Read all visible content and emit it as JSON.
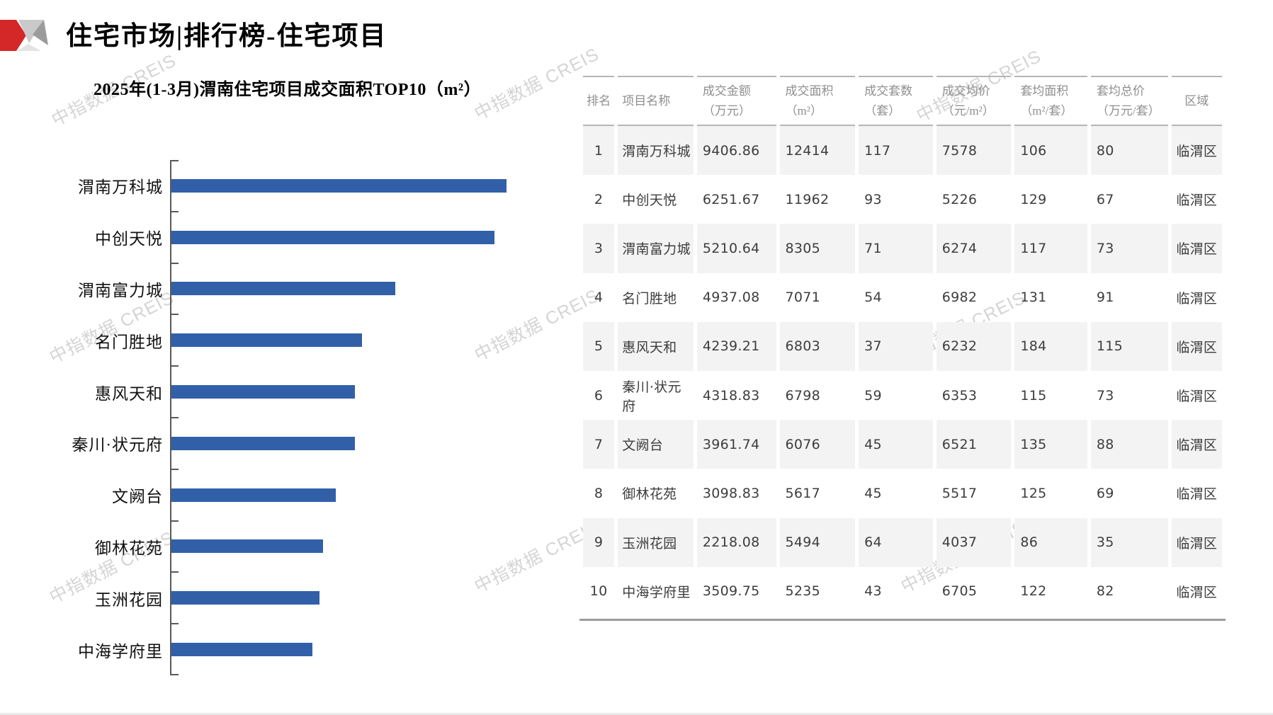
{
  "header": {
    "title": "住宅市场|排行榜-住宅项目"
  },
  "watermark": {
    "text": "中指数据 CREIS"
  },
  "chart_data": {
    "type": "bar",
    "orientation": "horizontal",
    "title": "2025年(1-3月)渭南住宅项目成交面积TOP10（m²）",
    "categories": [
      "渭南万科城",
      "中创天悦",
      "渭南富力城",
      "名门胜地",
      "惠风天和",
      "秦川·状元府",
      "文阙台",
      "御林花苑",
      "玉洲花园",
      "中海学府里"
    ],
    "values": [
      12414,
      11962,
      8305,
      7071,
      6803,
      6798,
      6076,
      5617,
      5494,
      5235
    ],
    "value_unit": "m²",
    "xlabel": "",
    "ylabel": "",
    "xlim": [
      0,
      13100
    ],
    "grid": false,
    "legend": "none",
    "bar_color": "#3160a9"
  },
  "table": {
    "columns": [
      "排名",
      "项目名称",
      "成交金额\n（万元）",
      "成交面积\n（m²）",
      "成交套数\n（套）",
      "成交均价\n（元/m²）",
      "套均面积\n（m²/套）",
      "套均总价\n（万元/套）",
      "区域"
    ],
    "rows": [
      [
        "1",
        "渭南万科城",
        "9406.86",
        "12414",
        "117",
        "7578",
        "106",
        "80",
        "临渭区"
      ],
      [
        "2",
        "中创天悦",
        "6251.67",
        "11962",
        "93",
        "5226",
        "129",
        "67",
        "临渭区"
      ],
      [
        "3",
        "渭南富力城",
        "5210.64",
        "8305",
        "71",
        "6274",
        "117",
        "73",
        "临渭区"
      ],
      [
        "4",
        "名门胜地",
        "4937.08",
        "7071",
        "54",
        "6982",
        "131",
        "91",
        "临渭区"
      ],
      [
        "5",
        "惠风天和",
        "4239.21",
        "6803",
        "37",
        "6232",
        "184",
        "115",
        "临渭区"
      ],
      [
        "6",
        "秦川·状元府",
        "4318.83",
        "6798",
        "59",
        "6353",
        "115",
        "73",
        "临渭区"
      ],
      [
        "7",
        "文阙台",
        "3961.74",
        "6076",
        "45",
        "6521",
        "135",
        "88",
        "临渭区"
      ],
      [
        "8",
        "御林花苑",
        "3098.83",
        "5617",
        "45",
        "5517",
        "125",
        "69",
        "临渭区"
      ],
      [
        "9",
        "玉洲花园",
        "2218.08",
        "5494",
        "64",
        "4037",
        "86",
        "35",
        "临渭区"
      ],
      [
        "10",
        "中海学府里",
        "3509.75",
        "5235",
        "43",
        "6705",
        "122",
        "82",
        "临渭区"
      ]
    ]
  },
  "colors": {
    "bar_blue": "#3160a9",
    "axis_gray": "#595959",
    "header_text_gray": "#8f8f8f",
    "row_shade": "#f3f3f3",
    "logo_red": "#d42727",
    "logo_gray_light": "#c9c9c9",
    "logo_gray_dark": "#9b9b9b",
    "watermark_gray": "#9b9b9b"
  }
}
